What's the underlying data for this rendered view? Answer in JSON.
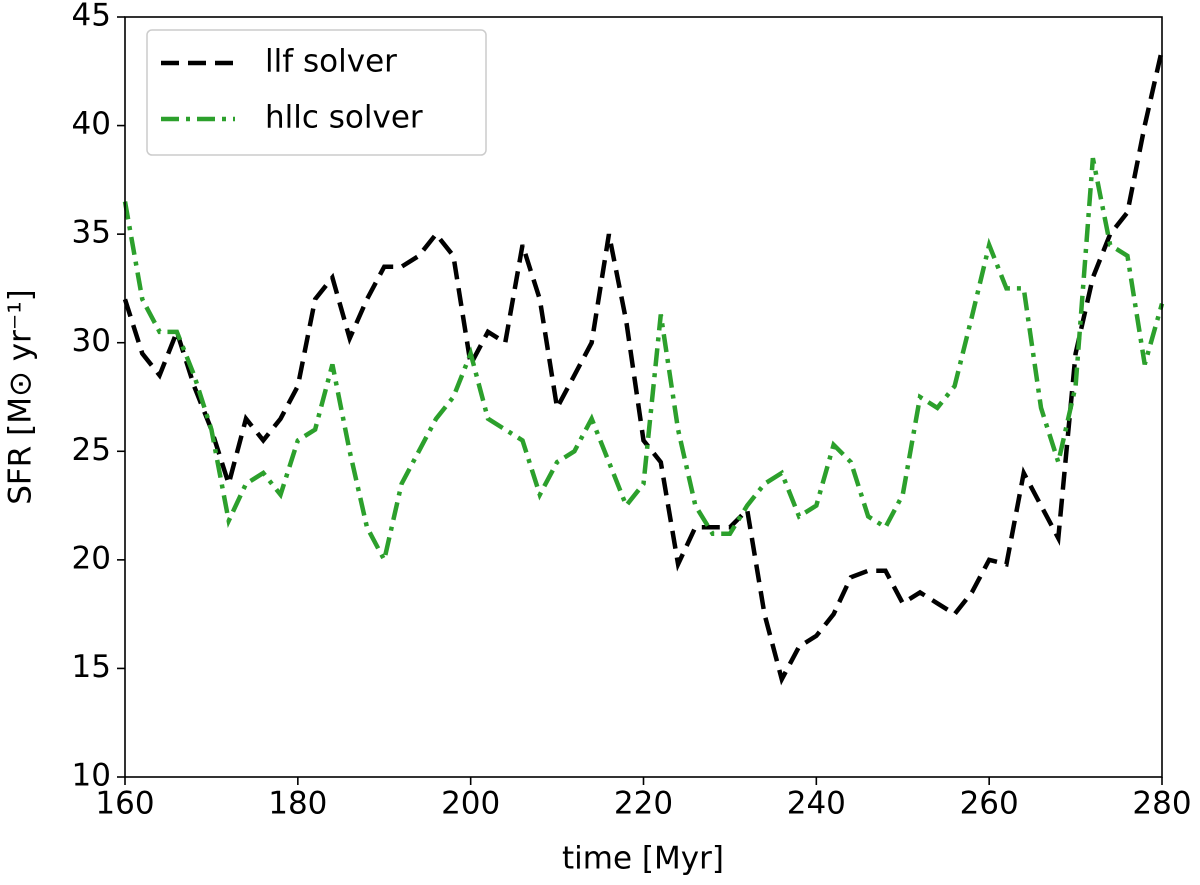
{
  "chart_data": {
    "type": "line",
    "xlabel": "time [Myr]",
    "ylabel": "SFR [M⊙ yr⁻¹]",
    "x": [
      160,
      162,
      164,
      166,
      168,
      170,
      172,
      174,
      176,
      178,
      180,
      182,
      184,
      186,
      188,
      190,
      192,
      194,
      196,
      198,
      200,
      202,
      204,
      206,
      208,
      210,
      212,
      214,
      216,
      218,
      220,
      222,
      224,
      226,
      228,
      230,
      232,
      234,
      236,
      238,
      240,
      242,
      244,
      246,
      248,
      250,
      252,
      254,
      256,
      258,
      260,
      262,
      264,
      266,
      268,
      270,
      272,
      274,
      276,
      278,
      280
    ],
    "series": [
      {
        "name": "llf solver",
        "color": "#000000",
        "linestyle": "dashed",
        "values": [
          32,
          29.5,
          28.5,
          30.5,
          28,
          26,
          23.5,
          26.5,
          25.5,
          26.5,
          28,
          32,
          33,
          30.2,
          32,
          33.5,
          33.5,
          34,
          35,
          34,
          29,
          30.5,
          30,
          34.5,
          32,
          27,
          28.5,
          30,
          35,
          31,
          25.5,
          24.5,
          19.8,
          21.5,
          21.5,
          21.5,
          22.3,
          17.5,
          14.5,
          16,
          16.5,
          17.5,
          19.2,
          19.5,
          19.5,
          18,
          18.5,
          18,
          17.5,
          18.5,
          20,
          19.8,
          24,
          22.5,
          21,
          29.5,
          33,
          35,
          36,
          40,
          43.5
        ]
      },
      {
        "name": "hllc solver",
        "color": "#2ca02c",
        "linestyle": "dashdot",
        "values": [
          36.5,
          32,
          30.5,
          30.5,
          28.5,
          26,
          21.8,
          23.5,
          24,
          23,
          25.5,
          26,
          29,
          25,
          21.5,
          20,
          23.5,
          25,
          26.5,
          27.5,
          29.5,
          26.5,
          26,
          25.5,
          23,
          24.5,
          25,
          26.5,
          24.5,
          22.5,
          23.5,
          31.3,
          26,
          22.5,
          21.2,
          21.2,
          22.5,
          23.5,
          24,
          22,
          22.5,
          25.3,
          24.5,
          22,
          21.5,
          23,
          27.5,
          27,
          28,
          31.2,
          34.5,
          32.5,
          32.5,
          27,
          24.5,
          28,
          38.5,
          34.5,
          34,
          29,
          31.8
        ]
      }
    ],
    "xlim": [
      160,
      280
    ],
    "xticks": [
      160,
      180,
      200,
      220,
      240,
      260,
      280
    ],
    "ylim": [
      10,
      45
    ],
    "yticks": [
      10,
      15,
      20,
      25,
      30,
      35,
      40,
      45
    ],
    "grid": false,
    "legend": "upper left"
  }
}
